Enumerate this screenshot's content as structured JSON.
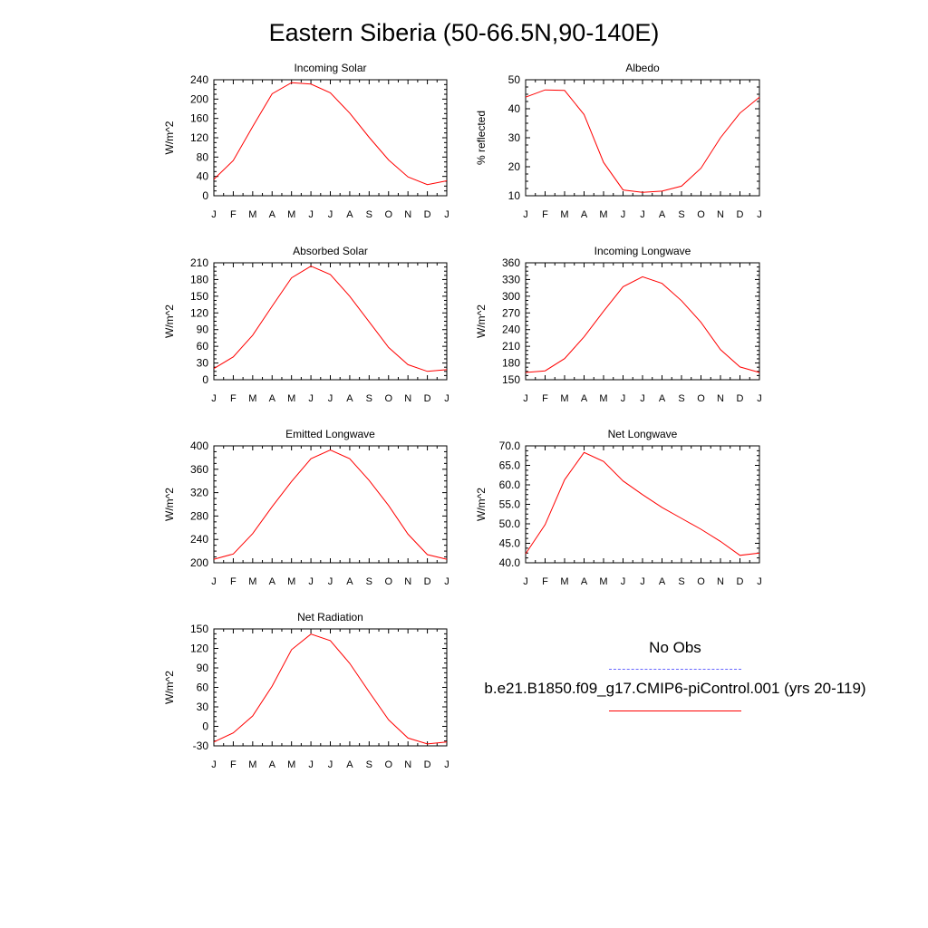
{
  "title": "Eastern Siberia (50-66.5N,90-140E)",
  "legend": {
    "obs_label": "No Obs",
    "model_label": "b.e21.B1850.f09_g17.CMIP6-piControl.001 (yrs 20-119)",
    "obs_color": "#6666ff",
    "model_color": "#ff0000"
  },
  "chart_data": [
    {
      "type": "line",
      "title": "Incoming Solar",
      "ylabel": "W/m^2",
      "categories": [
        "J",
        "F",
        "M",
        "A",
        "M",
        "J",
        "J",
        "A",
        "S",
        "O",
        "N",
        "D",
        "J"
      ],
      "ylim": [
        0,
        240
      ],
      "yticks": [
        "0",
        "40",
        "80",
        "120",
        "160",
        "200",
        "240"
      ],
      "series": [
        {
          "values": [
            34,
            73,
            143,
            211,
            234,
            231,
            213,
            171,
            121,
            74,
            39,
            23,
            31
          ],
          "color": "#ff0000"
        }
      ]
    },
    {
      "type": "line",
      "title": "Albedo",
      "ylabel": "% reflected",
      "categories": [
        "J",
        "F",
        "M",
        "A",
        "M",
        "J",
        "J",
        "A",
        "S",
        "O",
        "N",
        "D",
        "J"
      ],
      "ylim": [
        10,
        50
      ],
      "yticks": [
        "10",
        "20",
        "30",
        "40",
        "50"
      ],
      "series": [
        {
          "values": [
            44,
            46.5,
            46.3,
            38,
            21.5,
            12,
            11.2,
            11.6,
            13.3,
            19.5,
            30,
            38.5,
            44
          ],
          "color": "#ff0000"
        }
      ]
    },
    {
      "type": "line",
      "title": "Absorbed Solar",
      "ylabel": "W/m^2",
      "categories": [
        "J",
        "F",
        "M",
        "A",
        "M",
        "J",
        "J",
        "A",
        "S",
        "O",
        "N",
        "D",
        "J"
      ],
      "ylim": [
        0,
        210
      ],
      "yticks": [
        "0",
        "30",
        "60",
        "90",
        "120",
        "150",
        "180",
        "210"
      ],
      "series": [
        {
          "values": [
            20,
            41,
            80,
            132,
            183,
            204,
            189,
            150,
            104,
            58,
            27,
            15,
            18
          ],
          "color": "#ff0000"
        }
      ]
    },
    {
      "type": "line",
      "title": "Incoming Longwave",
      "ylabel": "W/m^2",
      "categories": [
        "J",
        "F",
        "M",
        "A",
        "M",
        "J",
        "J",
        "A",
        "S",
        "O",
        "N",
        "D",
        "J"
      ],
      "ylim": [
        150,
        360
      ],
      "yticks": [
        "150",
        "180",
        "210",
        "240",
        "270",
        "300",
        "330",
        "360"
      ],
      "series": [
        {
          "values": [
            163,
            166,
            188,
            227,
            273,
            317,
            335,
            323,
            292,
            253,
            204,
            173,
            163
          ],
          "color": "#ff0000"
        }
      ]
    },
    {
      "type": "line",
      "title": "Emitted Longwave",
      "ylabel": "W/m^2",
      "categories": [
        "J",
        "F",
        "M",
        "A",
        "M",
        "J",
        "J",
        "A",
        "S",
        "O",
        "N",
        "D",
        "J"
      ],
      "ylim": [
        200,
        400
      ],
      "yticks": [
        "200",
        "240",
        "280",
        "320",
        "360",
        "400"
      ],
      "series": [
        {
          "values": [
            206,
            215,
            250,
            296,
            339,
            378,
            393,
            378,
            341,
            298,
            249,
            214,
            206
          ],
          "color": "#ff0000"
        }
      ]
    },
    {
      "type": "line",
      "title": "Net Longwave",
      "ylabel": "W/m^2",
      "categories": [
        "J",
        "F",
        "M",
        "A",
        "M",
        "J",
        "J",
        "A",
        "S",
        "O",
        "N",
        "D",
        "J"
      ],
      "ylim": [
        40,
        70
      ],
      "yticks": [
        "40.0",
        "45.0",
        "50.0",
        "55.0",
        "60.0",
        "65.0",
        "70.0"
      ],
      "series": [
        {
          "values": [
            42.3,
            49.8,
            61.3,
            68.3,
            66,
            61,
            57.5,
            54.2,
            51.4,
            48.6,
            45.5,
            41.9,
            42.5
          ],
          "color": "#ff0000"
        }
      ]
    },
    {
      "type": "line",
      "title": "Net Radiation",
      "ylabel": "W/m^2",
      "categories": [
        "J",
        "F",
        "M",
        "A",
        "M",
        "J",
        "J",
        "A",
        "S",
        "O",
        "N",
        "D",
        "J"
      ],
      "ylim": [
        -30,
        150
      ],
      "yticks": [
        "-30",
        "0",
        "30",
        "60",
        "90",
        "120",
        "150"
      ],
      "series": [
        {
          "values": [
            -24,
            -10,
            16,
            62,
            118,
            142,
            132,
            97,
            53,
            10,
            -18,
            -27,
            -24
          ],
          "color": "#ff0000"
        }
      ]
    }
  ]
}
